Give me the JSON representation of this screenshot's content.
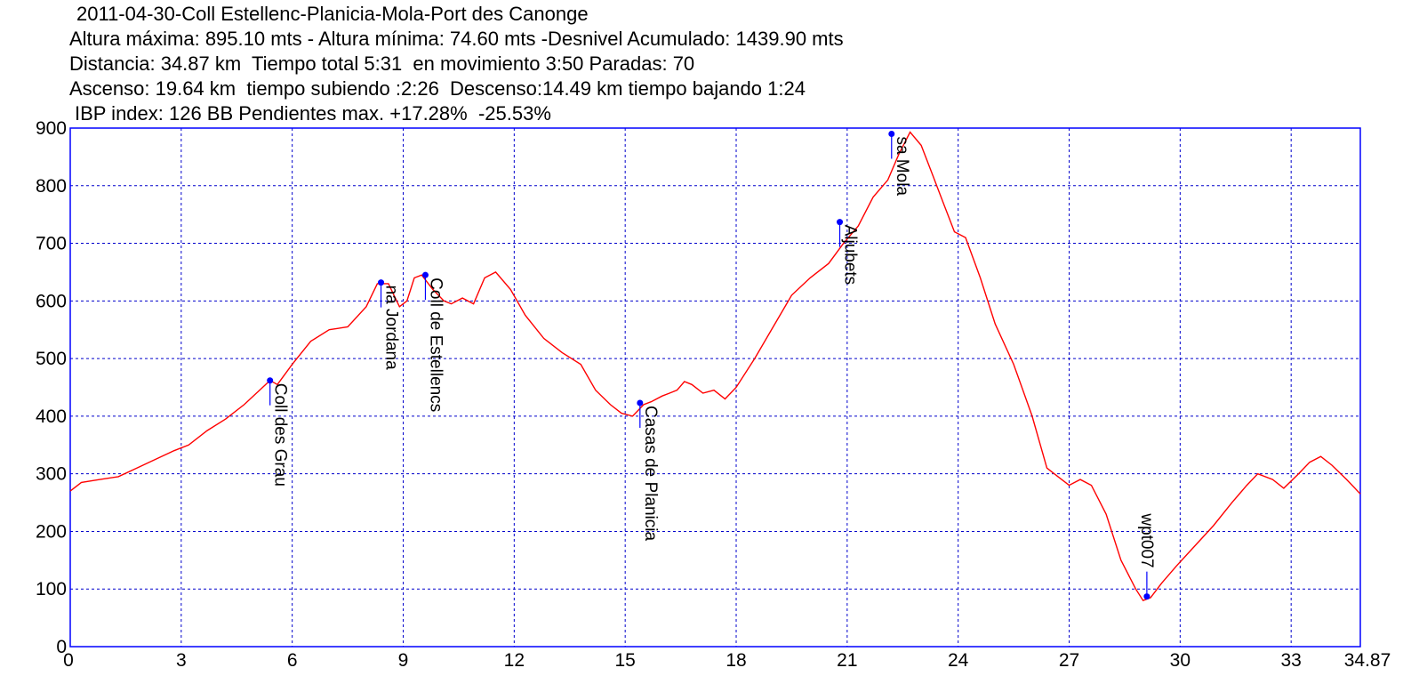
{
  "header": {
    "line1": "2011-04-30-Coll Estellenc-Planicia-Mola-Port des Canonge",
    "line2": "Altura máxima: 895.10 mts - Altura mínima: 74.60 mts -Desnivel Acumulado: 1439.90 mts",
    "line3": "Distancia: 34.87 km  Tiempo total 5:31  en movimiento 3:50 Paradas: 70",
    "line4": "Ascenso: 19.64 km  tiempo subiendo :2:26  Descenso:14.49 km tiempo bajando 1:24",
    "line5": "IBP index: 126 BB Pendientes max. +17.28%  -25.53%"
  },
  "colors": {
    "profile": "#ff0000",
    "grid": "#0000cc",
    "frame": "#0000ff",
    "waypoint": "#0000ff"
  },
  "chart_data": {
    "type": "line",
    "title": "2011-04-30-Coll Estellenc-Planicia-Mola-Port des Canonge",
    "xlabel": "",
    "ylabel": "",
    "xlim": [
      0,
      34.87
    ],
    "ylim": [
      0,
      900
    ],
    "x_ticks": [
      "0",
      "3",
      "6",
      "9",
      "12",
      "15",
      "18",
      "21",
      "24",
      "27",
      "30",
      "33",
      "34.87"
    ],
    "y_ticks": [
      "0",
      "100",
      "200",
      "300",
      "400",
      "500",
      "600",
      "700",
      "800",
      "900"
    ],
    "grid": true,
    "series": [
      {
        "x": [
          0,
          0.3,
          0.8,
          1.3,
          1.8,
          2.3,
          2.8,
          3.2,
          3.7,
          4.2,
          4.7,
          5.2,
          5.4,
          5.6,
          6.0,
          6.5,
          7.0,
          7.5,
          8.0,
          8.3,
          8.6,
          8.9,
          9.1,
          9.3,
          9.5,
          9.8,
          10.1,
          10.3,
          10.6,
          10.9,
          11.2,
          11.5,
          11.9,
          12.3,
          12.8,
          13.3,
          13.8,
          14.2,
          14.6,
          14.9,
          15.2,
          15.5,
          15.7,
          16.0,
          16.2,
          16.4,
          16.6,
          16.8,
          17.1,
          17.4,
          17.7,
          18.0,
          18.5,
          19.0,
          19.5,
          20.0,
          20.5,
          20.9,
          21.3,
          21.7,
          22.1,
          22.4,
          22.7,
          23.0,
          23.3,
          23.6,
          23.9,
          24.2,
          24.6,
          25.0,
          25.5,
          26.0,
          26.4,
          26.7,
          27.0,
          27.3,
          27.6,
          28.0,
          28.4,
          28.8,
          29.0,
          29.2,
          29.5,
          29.9,
          30.4,
          30.9,
          31.4,
          31.8,
          32.1,
          32.5,
          32.8,
          33.2,
          33.5,
          33.8,
          34.1,
          34.5,
          34.87
        ],
        "y": [
          270,
          285,
          290,
          295,
          310,
          325,
          340,
          350,
          375,
          395,
          420,
          450,
          462,
          455,
          490,
          530,
          550,
          555,
          590,
          630,
          630,
          590,
          600,
          640,
          645,
          620,
          600,
          595,
          605,
          595,
          640,
          650,
          620,
          575,
          535,
          510,
          490,
          445,
          420,
          405,
          400,
          420,
          425,
          435,
          440,
          445,
          460,
          455,
          440,
          445,
          430,
          450,
          500,
          555,
          610,
          640,
          665,
          700,
          730,
          780,
          810,
          855,
          893,
          870,
          820,
          770,
          720,
          710,
          640,
          560,
          490,
          400,
          310,
          295,
          280,
          290,
          280,
          230,
          150,
          100,
          80,
          85,
          110,
          140,
          175,
          210,
          250,
          280,
          300,
          290,
          275,
          300,
          320,
          330,
          315,
          290,
          265
        ]
      }
    ],
    "waypoints": [
      {
        "name": "Coll des Grau",
        "x": 5.4,
        "y": 462
      },
      {
        "name": "na Jordana",
        "x": 8.4,
        "y": 632
      },
      {
        "name": "Coll de Estellencs",
        "x": 9.6,
        "y": 645
      },
      {
        "name": "Casas de Planicia",
        "x": 15.4,
        "y": 423
      },
      {
        "name": "Aljubets",
        "x": 20.8,
        "y": 737
      },
      {
        "name": "sa Mola",
        "x": 22.2,
        "y": 890
      },
      {
        "name": "wpt007",
        "x": 29.1,
        "y": 87
      }
    ]
  }
}
